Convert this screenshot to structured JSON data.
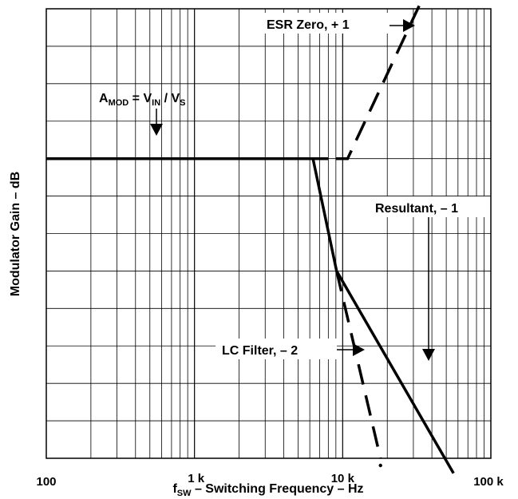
{
  "chart_data": {
    "type": "line",
    "xscale": "log",
    "xlim": [
      100,
      100000
    ],
    "ylim": [
      -8,
      4
    ],
    "grid": true,
    "xlabel": {
      "main": "f",
      "sub": "SW",
      "rest": " – Switching Frequency – Hz"
    },
    "ylabel": "Modulator Gain – dB",
    "x_ticks": [
      {
        "value": 100,
        "label": "100"
      },
      {
        "value": 1000,
        "label": "1 k"
      },
      {
        "value": 10000,
        "label": "10 k"
      },
      {
        "value": 100000,
        "label": "100 k"
      }
    ],
    "series": [
      {
        "name": "A_MOD",
        "style": "solid",
        "points": [
          [
            100,
            0
          ],
          [
            8000,
            0
          ]
        ]
      },
      {
        "name": "Resultant, – 1",
        "style": "solid",
        "points": [
          [
            6300,
            0
          ],
          [
            9100,
            -3
          ],
          [
            56000,
            -8.4
          ]
        ]
      },
      {
        "name": "LC Filter, – 2",
        "style": "dashed",
        "points": [
          [
            9100,
            -3
          ],
          [
            18000,
            -8
          ]
        ]
      },
      {
        "name": "ESR Zero, + 1",
        "style": "dashed",
        "points": [
          [
            9000,
            0
          ],
          [
            10800,
            0
          ],
          [
            33000,
            4.1
          ]
        ]
      }
    ],
    "annotations": {
      "amod": {
        "A": "A",
        "MOD": "MOD",
        "eq": " = V",
        "IN": "IN",
        "slash": " / V",
        "S": "S"
      },
      "esr": "ESR Zero, + 1",
      "resultant": "Resultant, – 1",
      "lc": "LC Filter, – 2"
    }
  }
}
